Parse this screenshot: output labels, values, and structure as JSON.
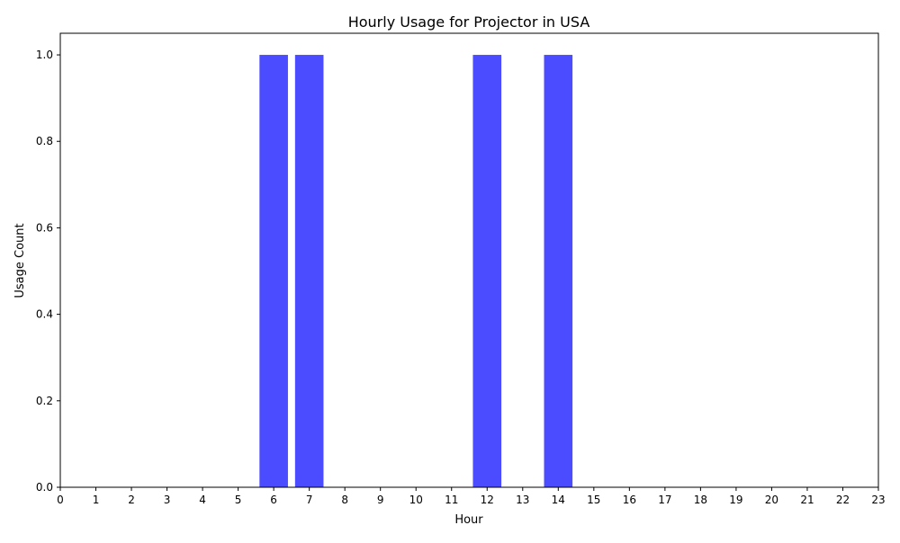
{
  "chart_data": {
    "type": "bar",
    "title": "Hourly Usage for Projector in USA",
    "xlabel": "Hour",
    "ylabel": "Usage Count",
    "categories": [
      0,
      1,
      2,
      3,
      4,
      5,
      6,
      7,
      8,
      9,
      10,
      11,
      12,
      13,
      14,
      15,
      16,
      17,
      18,
      19,
      20,
      21,
      22,
      23
    ],
    "values": [
      0,
      0,
      0,
      0,
      0,
      0,
      1,
      1,
      0,
      0,
      0,
      0,
      1,
      0,
      1,
      0,
      0,
      0,
      0,
      0,
      0,
      0,
      0,
      0
    ],
    "xlim": [
      0,
      23
    ],
    "ylim": [
      0,
      1.05
    ],
    "yticks": [
      0.0,
      0.2,
      0.4,
      0.6,
      0.8,
      1.0
    ],
    "ytick_labels": [
      "0.0",
      "0.2",
      "0.4",
      "0.6",
      "0.8",
      "1.0"
    ],
    "xticks": [
      0,
      1,
      2,
      3,
      4,
      5,
      6,
      7,
      8,
      9,
      10,
      11,
      12,
      13,
      14,
      15,
      16,
      17,
      18,
      19,
      20,
      21,
      22,
      23
    ],
    "grid": false,
    "legend": false,
    "bar_color": "#4b4bff"
  }
}
